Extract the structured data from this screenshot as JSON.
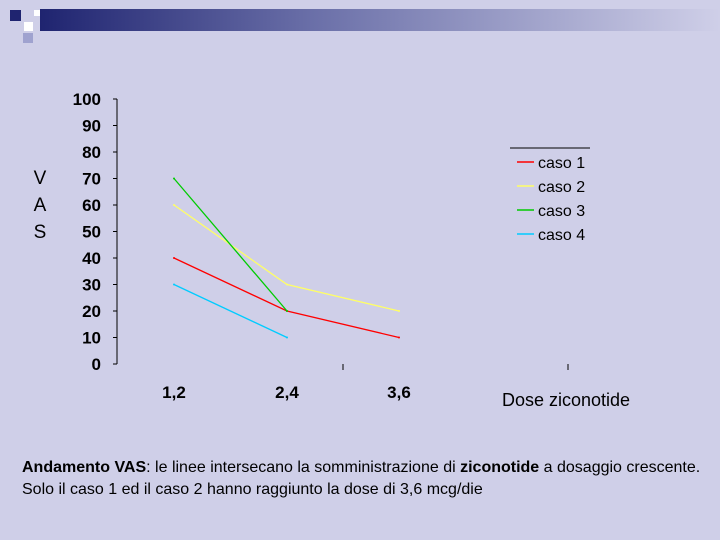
{
  "slide": {
    "ylabel_letters": [
      "V",
      "A",
      "S"
    ],
    "caption": {
      "title": "Andamento VAS",
      "text": ": le linee intersecano la somministrazione di ",
      "bold_word": "ziconotide",
      "text2": " a dosaggio crescente. Solo il caso 1 ed il caso 2 hanno raggiunto la dose di 3,6 mcg/die"
    }
  },
  "colors": {
    "background": "#cfcfe8",
    "caso1": "#ff0000",
    "caso2": "#ffff66",
    "caso3": "#00cc00",
    "caso4": "#00ccff"
  },
  "chart_data": {
    "type": "line",
    "categories": [
      "1,2",
      "2,4",
      "3,6"
    ],
    "xlabel": "Dose ziconotide",
    "ylabel": "VAS",
    "ylim": [
      0,
      100
    ],
    "yticks": [
      0,
      10,
      20,
      30,
      40,
      50,
      60,
      70,
      80,
      90,
      100
    ],
    "grid": false,
    "legend": "right",
    "series": [
      {
        "name": "caso 1",
        "color": "#ff0000",
        "values": [
          40,
          20,
          10
        ]
      },
      {
        "name": "caso 2",
        "color": "#ffff66",
        "values": [
          60,
          30,
          20
        ]
      },
      {
        "name": "caso 3",
        "color": "#00cc00",
        "values": [
          70,
          20,
          null
        ]
      },
      {
        "name": "caso 4",
        "color": "#00ccff",
        "values": [
          30,
          10,
          null
        ]
      }
    ]
  }
}
